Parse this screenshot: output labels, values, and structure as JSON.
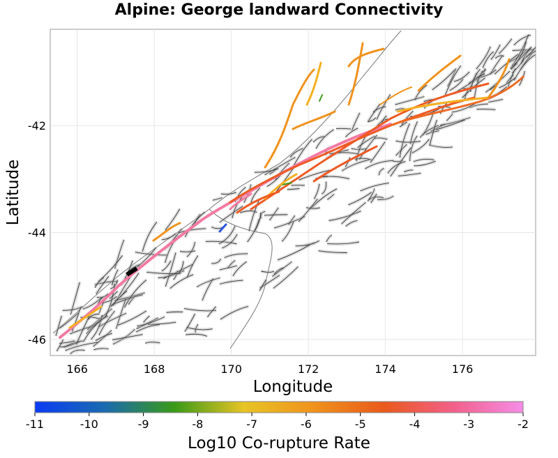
{
  "title": "Alpine: George landward Connectivity",
  "map": {
    "xlabel": "Longitude",
    "ylabel": "Latitude",
    "xlim": [
      165.3,
      177.9
    ],
    "ylim": [
      -46.3,
      -40.2
    ],
    "xticks": [
      166,
      168,
      170,
      172,
      174,
      176
    ],
    "yticks": [
      -42,
      -44,
      -46
    ],
    "grid": true
  },
  "colorbar": {
    "label": "Log10 Co-rupture Rate",
    "min": -11,
    "max": -2,
    "ticks": [
      "-11",
      "-10",
      "-9",
      "-8",
      "-7",
      "-6",
      "-5",
      "-4",
      "-3",
      "-2"
    ],
    "stops": [
      "#0a3bf5",
      "#1a6bb0",
      "#3a9a18",
      "#e8c425",
      "#f0921c",
      "#e95a1c",
      "#f2608a",
      "#f58de8"
    ]
  },
  "colors": {
    "background_fault": "#333333",
    "fault_outline": "#aaaaaa",
    "coast": "#777777",
    "source_section": "#000000"
  }
}
